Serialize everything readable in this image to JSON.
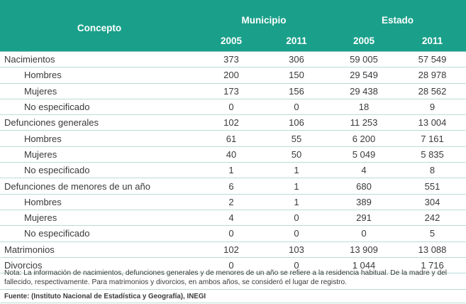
{
  "header": {
    "concept": "Concepto",
    "municipio": "Municipio",
    "estado": "Estado",
    "years": [
      "2005",
      "2011",
      "2005",
      "2011"
    ]
  },
  "rows": [
    {
      "label": "Nacimientos",
      "v": [
        "373",
        "306",
        "59 005",
        "57 549"
      ]
    },
    {
      "label": "Hombres",
      "v": [
        "200",
        "150",
        "29 549",
        "28 978"
      ]
    },
    {
      "label": "Mujeres",
      "v": [
        "173",
        "156",
        "29 438",
        "28 562"
      ]
    },
    {
      "label": "No especificado",
      "v": [
        "0",
        "0",
        "18",
        "9"
      ]
    },
    {
      "label": "Defunciones generales",
      "v": [
        "102",
        "106",
        "11 253",
        "13 004"
      ]
    },
    {
      "label": "Hombres",
      "v": [
        "61",
        "55",
        "6 200",
        "7 161"
      ]
    },
    {
      "label": "Mujeres",
      "v": [
        "40",
        "50",
        "5 049",
        "5 835"
      ]
    },
    {
      "label": "No especificado",
      "v": [
        "1",
        "1",
        "4",
        "8"
      ]
    },
    {
      "label": "Defunciones de menores de un año",
      "v": [
        "6",
        "1",
        "680",
        "551"
      ]
    },
    {
      "label": "Hombres",
      "v": [
        "2",
        "1",
        "389",
        "304"
      ]
    },
    {
      "label": "Mujeres",
      "v": [
        "4",
        "0",
        "291",
        "242"
      ]
    },
    {
      "label": "No especificado",
      "v": [
        "0",
        "0",
        "0",
        "5"
      ]
    },
    {
      "label": "Matrimonios",
      "v": [
        "102",
        "103",
        "13 909",
        "13 088"
      ]
    },
    {
      "label": "Divorcios",
      "v": [
        "0",
        "0",
        "1 044",
        "1 716"
      ]
    }
  ],
  "note": "Nota: La información de nacimientos, defunciones generales y de menores de un año se refiere a la residencia habitual. De la madre y del fallecido, respectivamente. Para matrimonios y divorcios, en ambos años, se consideró el lugar de registro.",
  "source": "Fuente: (Instituto Nacional de Estadística y Geografía), INEGI",
  "colors": {
    "header_bg": "#1aa08a",
    "header_text": "#ffffff",
    "row_rule": "#b9dcd6",
    "text": "#3a3a3a"
  }
}
